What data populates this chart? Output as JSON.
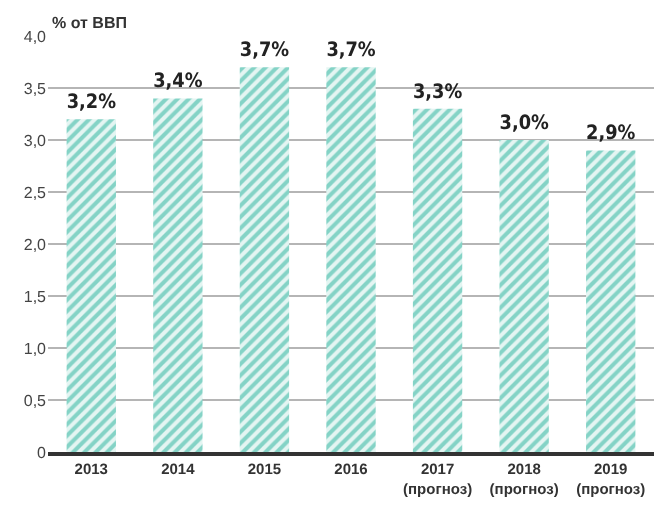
{
  "chart_data": {
    "type": "bar",
    "ylabel": "% от ВВП",
    "categories": [
      "2013",
      "2014",
      "2015",
      "2016",
      "2017\n(прогноз)",
      "2018\n(прогноз)",
      "2019\n(прогноз)"
    ],
    "values": [
      3.2,
      3.4,
      3.7,
      3.7,
      3.3,
      3.0,
      2.9
    ],
    "value_labels": [
      "3,2%",
      "3,4%",
      "3,7%",
      "3,7%",
      "3,3%",
      "3,0%",
      "2,9%"
    ],
    "color": "#84d3c6",
    "ylim": [
      0,
      4.0
    ],
    "yticks": [
      0,
      {
        "value": 0.5,
        "label": "0,5"
      },
      {
        "value": 1.0,
        "label": "1,0"
      },
      {
        "value": 1.5,
        "label": "1,5"
      },
      {
        "value": 2.0,
        "label": "2,0"
      },
      {
        "value": 2.5,
        "label": "2,5"
      },
      {
        "value": 3.0,
        "label": "3,0"
      },
      {
        "value": 3.5,
        "label": "3,5"
      },
      {
        "value": 4.0,
        "label": "4,0"
      }
    ],
    "grid": "y",
    "legend": false
  }
}
